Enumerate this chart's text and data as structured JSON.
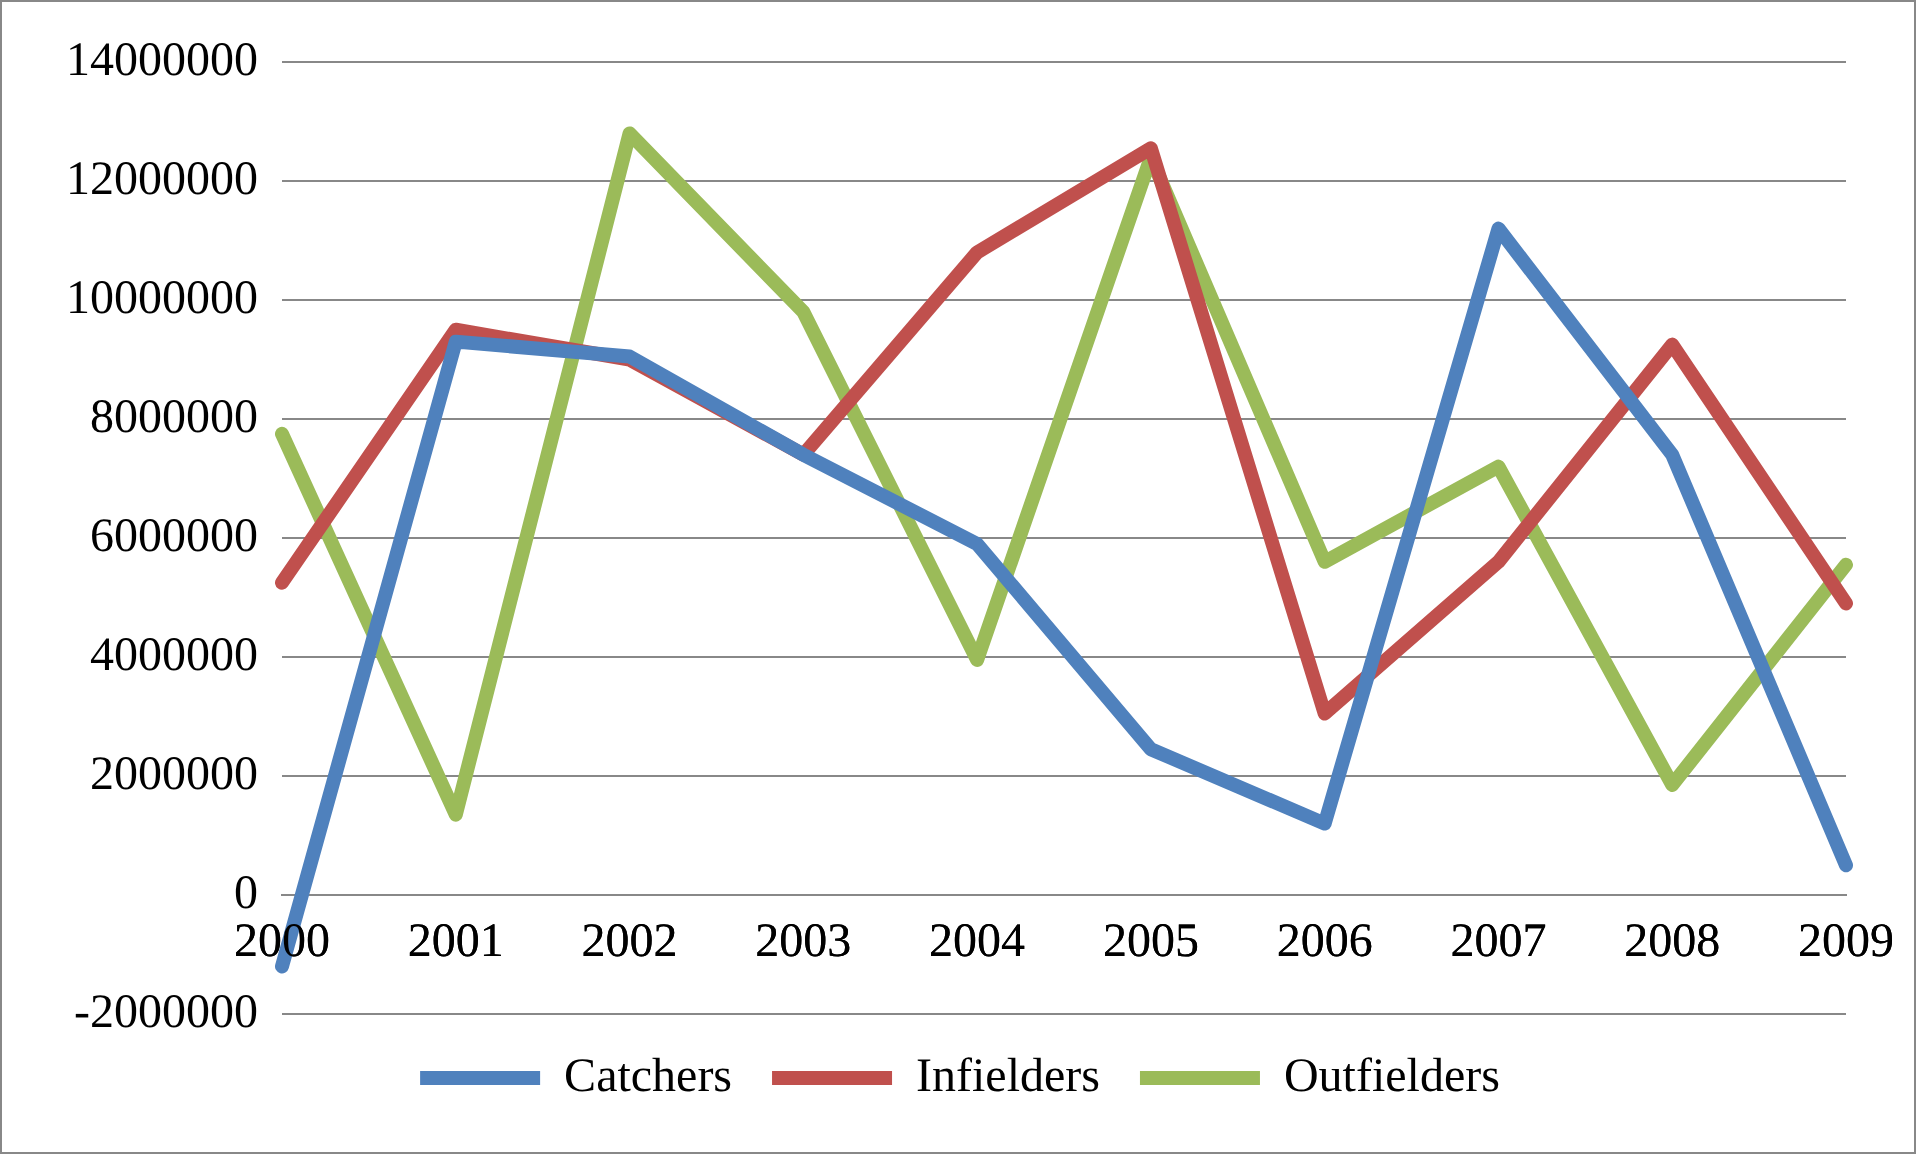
{
  "chart_data": {
    "type": "line",
    "categories": [
      "2000",
      "2001",
      "2002",
      "2003",
      "2004",
      "2005",
      "2006",
      "2007",
      "2008",
      "2009"
    ],
    "series": [
      {
        "name": "Catchers",
        "color": "#4f81bd",
        "values": [
          -1200000,
          9300000,
          9050000,
          7400000,
          5900000,
          2450000,
          1200000,
          11200000,
          7400000,
          500000
        ]
      },
      {
        "name": "Infielders",
        "color": "#c0504d",
        "values": [
          5250000,
          9500000,
          9000000,
          7400000,
          10800000,
          12550000,
          3050000,
          5600000,
          9250000,
          4900000
        ]
      },
      {
        "name": "Outfielders",
        "color": "#9bbb59",
        "values": [
          7750000,
          1350000,
          12800000,
          9800000,
          3950000,
          12400000,
          5600000,
          7200000,
          1850000,
          5550000
        ]
      }
    ],
    "ylim": [
      -2000000,
      14000000
    ],
    "yticks": [
      -2000000,
      0,
      2000000,
      4000000,
      6000000,
      8000000,
      10000000,
      12000000,
      14000000
    ],
    "grid": "y",
    "legend": "bottom",
    "marker": "none",
    "line_style": "solid"
  }
}
